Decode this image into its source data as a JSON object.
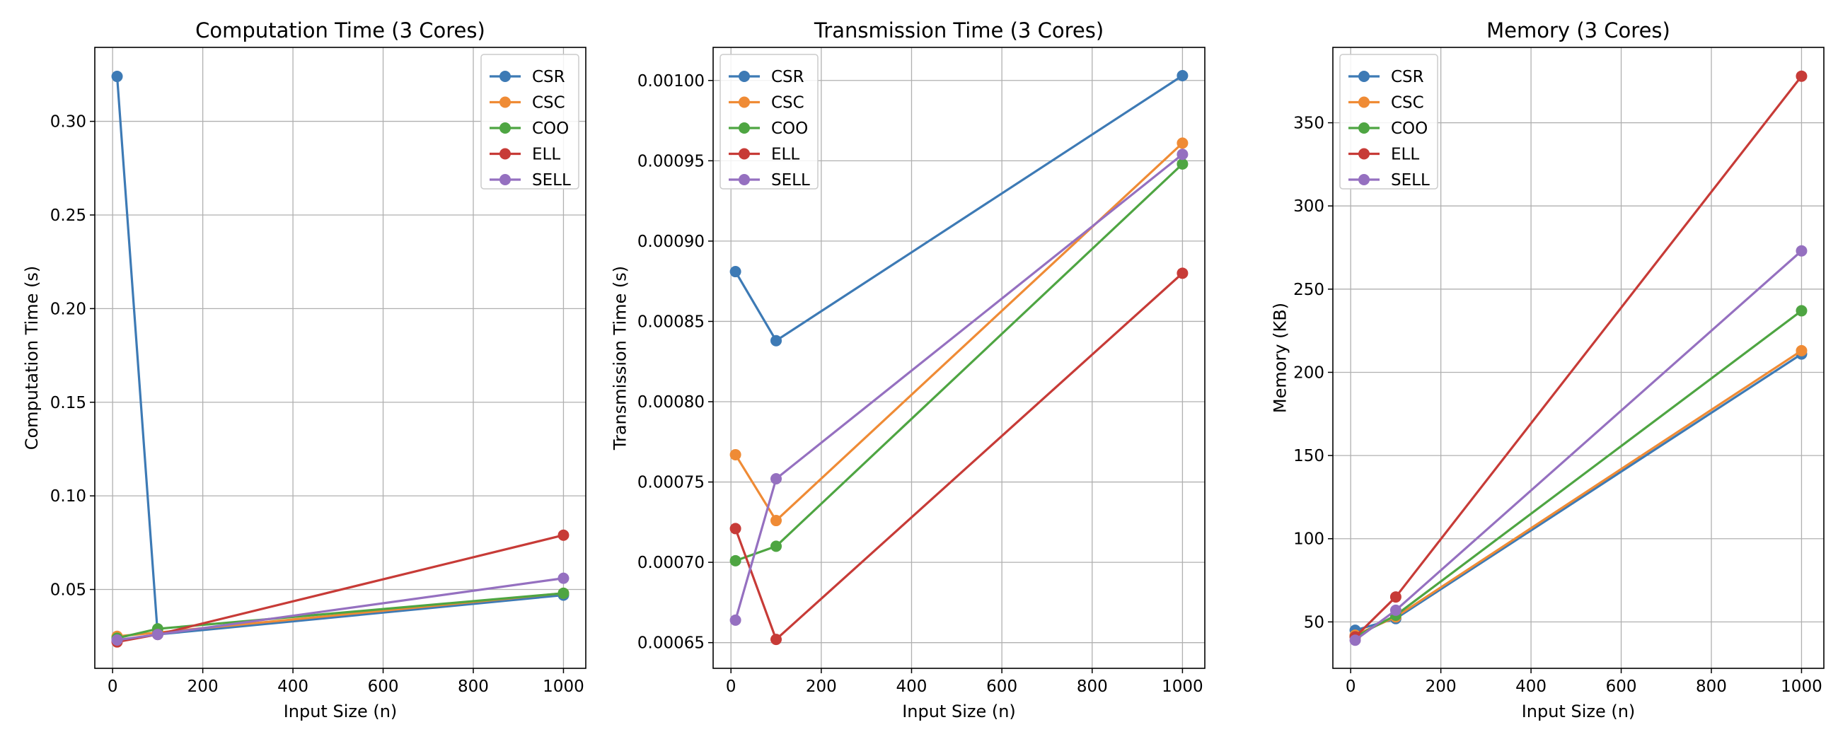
{
  "colors": {
    "CSR": "#3d7ab5",
    "CSC": "#ef8b35",
    "COO": "#4ea542",
    "ELL": "#c73b37",
    "SELL": "#9570c0",
    "grid": "#b0b0b0",
    "axes": "#000000"
  },
  "chart_data": [
    {
      "type": "line",
      "title": "Computation Time (3 Cores)",
      "xlabel": "Input Size (n)",
      "ylabel": "Computation Time (s)",
      "xlim": [
        -39.5,
        1049.5
      ],
      "ylim": [
        0.0079,
        0.3395
      ],
      "xticks": [
        0,
        200,
        400,
        600,
        800,
        1000
      ],
      "yticks": [
        0.05,
        0.1,
        0.15,
        0.2,
        0.25,
        0.3
      ],
      "ytick_labels": [
        "0.05",
        "0.10",
        "0.15",
        "0.20",
        "0.25",
        "0.30"
      ],
      "grid": true,
      "legend": "upper right",
      "x": [
        10,
        100,
        1000
      ],
      "series": [
        {
          "name": "CSR",
          "values": [
            0.324,
            0.026,
            0.047
          ]
        },
        {
          "name": "CSC",
          "values": [
            0.025,
            0.027,
            0.048
          ]
        },
        {
          "name": "COO",
          "values": [
            0.024,
            0.029,
            0.048
          ]
        },
        {
          "name": "ELL",
          "values": [
            0.022,
            0.026,
            0.079
          ]
        },
        {
          "name": "SELL",
          "values": [
            0.023,
            0.026,
            0.056
          ]
        }
      ]
    },
    {
      "type": "line",
      "title": "Transmission Time (3 Cores)",
      "xlabel": "Input Size (n)",
      "ylabel": "Transmission Time (s)",
      "xlim": [
        -39.5,
        1049.5
      ],
      "ylim": [
        0.000634,
        0.0010206
      ],
      "xticks": [
        0,
        200,
        400,
        600,
        800,
        1000
      ],
      "yticks": [
        0.00065,
        0.0007,
        0.00075,
        0.0008,
        0.00085,
        0.0009,
        0.00095,
        0.001
      ],
      "ytick_labels": [
        "0.00065",
        "0.00070",
        "0.00075",
        "0.00080",
        "0.00085",
        "0.00090",
        "0.00095",
        "0.00100"
      ],
      "grid": true,
      "legend": "upper left",
      "x": [
        10,
        100,
        1000
      ],
      "series": [
        {
          "name": "CSR",
          "values": [
            0.000881,
            0.000838,
            0.001003
          ]
        },
        {
          "name": "CSC",
          "values": [
            0.000767,
            0.000726,
            0.000961
          ]
        },
        {
          "name": "COO",
          "values": [
            0.000701,
            0.00071,
            0.000948
          ]
        },
        {
          "name": "ELL",
          "values": [
            0.000721,
            0.000652,
            0.00088
          ]
        },
        {
          "name": "SELL",
          "values": [
            0.000664,
            0.000752,
            0.000954
          ]
        }
      ]
    },
    {
      "type": "line",
      "title": "Memory (3 Cores)",
      "xlabel": "Input Size (n)",
      "ylabel": "Memory (KB)",
      "xlim": [
        -39.5,
        1049.5
      ],
      "ylim": [
        22.1,
        395.3
      ],
      "xticks": [
        0,
        200,
        400,
        600,
        800,
        1000
      ],
      "yticks": [
        50,
        100,
        150,
        200,
        250,
        300,
        350
      ],
      "ytick_labels": [
        "50",
        "100",
        "150",
        "200",
        "250",
        "300",
        "350"
      ],
      "grid": true,
      "legend": "upper left",
      "x": [
        10,
        100,
        1000
      ],
      "series": [
        {
          "name": "CSR",
          "values": [
            45,
            52,
            211
          ]
        },
        {
          "name": "CSC",
          "values": [
            42,
            53,
            213
          ]
        },
        {
          "name": "COO",
          "values": [
            41,
            54,
            237
          ]
        },
        {
          "name": "ELL",
          "values": [
            41,
            65,
            378
          ]
        },
        {
          "name": "SELL",
          "values": [
            39,
            57,
            273
          ]
        }
      ]
    }
  ]
}
